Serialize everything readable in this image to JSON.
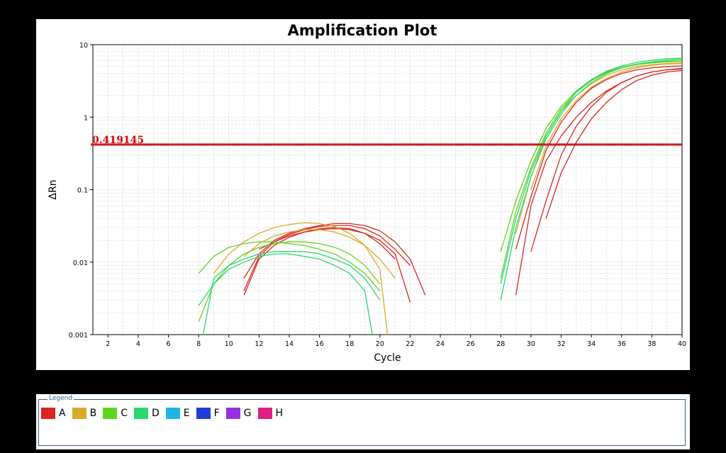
{
  "chart_data": {
    "type": "line",
    "title": "Amplification Plot",
    "xlabel": "Cycle",
    "ylabel": "ΔRn",
    "xlim": [
      1,
      40
    ],
    "ylim": [
      0.001,
      10
    ],
    "y_scale": "log",
    "x_ticks": [
      2,
      4,
      6,
      8,
      10,
      12,
      14,
      16,
      18,
      20,
      22,
      24,
      26,
      28,
      30,
      32,
      34,
      36,
      38,
      40
    ],
    "y_ticks": [
      "10",
      "1",
      "0.1",
      "0.01",
      "0.001"
    ],
    "y_tick_values": [
      10,
      1,
      0.1,
      0.01,
      0.001
    ],
    "grid": true,
    "threshold": {
      "label": "0.419145",
      "value": 0.419145,
      "color": "#c81e1e"
    },
    "series": [
      {
        "group": "A",
        "color": "#d9251d",
        "segments": [
          {
            "x": [
              11,
              12,
              13,
              14,
              15,
              16,
              17,
              18,
              19,
              20,
              21
            ],
            "y": [
              0.0035,
              0.011,
              0.017,
              0.022,
              0.026,
              0.029,
              0.03,
              0.029,
              0.025,
              0.018,
              0.011
            ]
          },
          {
            "x": [
              29,
              30,
              31,
              32,
              33,
              34,
              35,
              36,
              37,
              38,
              39,
              40
            ],
            "y": [
              0.0035,
              0.06,
              0.25,
              0.55,
              1.0,
              1.6,
              2.3,
              3.0,
              3.7,
              4.2,
              4.5,
              4.7
            ]
          }
        ]
      },
      {
        "group": "A",
        "color": "#d9251d",
        "segments": [
          {
            "x": [
              11,
              12,
              13,
              14,
              15,
              16,
              17,
              18,
              19,
              20,
              21,
              22
            ],
            "y": [
              0.004,
              0.012,
              0.019,
              0.024,
              0.028,
              0.031,
              0.032,
              0.032,
              0.029,
              0.023,
              0.015,
              0.009
            ]
          },
          {
            "x": [
              30,
              31,
              32,
              33,
              34,
              35,
              36,
              37,
              38,
              39,
              40
            ],
            "y": [
              0.014,
              0.07,
              0.3,
              0.75,
              1.4,
              2.2,
              3.0,
              3.7,
              4.2,
              4.5,
              4.6
            ]
          }
        ]
      },
      {
        "group": "A",
        "color": "#d9251d",
        "segments": [
          {
            "x": [
              11,
              12,
              13,
              14,
              15,
              16,
              17,
              18,
              19,
              20,
              21,
              22,
              23
            ],
            "y": [
              0.006,
              0.013,
              0.02,
              0.025,
              0.029,
              0.032,
              0.034,
              0.034,
              0.032,
              0.027,
              0.019,
              0.011,
              0.0035
            ]
          },
          {
            "x": [
              31,
              32,
              33,
              34,
              35,
              36,
              37,
              38,
              39,
              40
            ],
            "y": [
              0.04,
              0.17,
              0.45,
              0.95,
              1.6,
              2.4,
              3.2,
              3.8,
              4.2,
              4.4
            ]
          }
        ]
      },
      {
        "group": "A",
        "color": "#d9251d",
        "segments": [
          {
            "x": [
              12,
              13,
              14,
              15,
              16,
              17,
              18,
              19,
              20,
              21,
              22
            ],
            "y": [
              0.015,
              0.019,
              0.023,
              0.026,
              0.028,
              0.029,
              0.028,
              0.025,
              0.02,
              0.013,
              0.0028
            ]
          },
          {
            "x": [
              29,
              30,
              31,
              32,
              33,
              34,
              35,
              36,
              37,
              38,
              39,
              40
            ],
            "y": [
              0.015,
              0.08,
              0.35,
              0.85,
              1.6,
              2.5,
              3.3,
              4.0,
              4.5,
              4.8,
              5.0,
              5.1
            ]
          }
        ]
      },
      {
        "group": "B",
        "color": "#d9a928",
        "segments": [
          {
            "x": [
              9,
              10,
              11,
              12,
              13,
              14,
              15,
              16,
              17,
              18,
              19,
              20,
              20.5
            ],
            "y": [
              0.007,
              0.013,
              0.019,
              0.025,
              0.03,
              0.033,
              0.035,
              0.034,
              0.031,
              0.025,
              0.017,
              0.008,
              0.001
            ]
          },
          {
            "x": [
              29,
              30,
              31,
              32,
              33,
              34,
              35,
              36,
              37,
              38,
              39,
              40
            ],
            "y": [
              0.025,
              0.15,
              0.55,
              1.2,
              2.0,
              2.9,
              3.8,
              4.5,
              5.0,
              5.3,
              5.5,
              5.6
            ]
          }
        ]
      },
      {
        "group": "B",
        "color": "#d9a928",
        "segments": [
          {
            "x": [
              11,
              12,
              13,
              14,
              15,
              16,
              17,
              18,
              19,
              20,
              21
            ],
            "y": [
              0.012,
              0.018,
              0.023,
              0.026,
              0.028,
              0.028,
              0.026,
              0.022,
              0.017,
              0.011,
              0.006
            ]
          },
          {
            "x": [
              30,
              31,
              32,
              33,
              34,
              35,
              36,
              37,
              38,
              39,
              40
            ],
            "y": [
              0.1,
              0.4,
              0.95,
              1.7,
              2.6,
              3.4,
              4.2,
              4.8,
              5.2,
              5.4,
              5.5
            ]
          }
        ]
      },
      {
        "group": "C",
        "color": "#5fd41e",
        "segments": [
          {
            "x": [
              8,
              9,
              10,
              11,
              12,
              13,
              14,
              15,
              16,
              17,
              18,
              19,
              20
            ],
            "y": [
              0.007,
              0.012,
              0.016,
              0.018,
              0.019,
              0.019,
              0.018,
              0.017,
              0.015,
              0.013,
              0.01,
              0.007,
              0.004
            ]
          },
          {
            "x": [
              28,
              29,
              30,
              31,
              32,
              33,
              34,
              35,
              36,
              37,
              38,
              39,
              40
            ],
            "y": [
              0.014,
              0.07,
              0.25,
              0.7,
              1.4,
              2.3,
              3.3,
              4.2,
              4.9,
              5.4,
              5.7,
              5.9,
              6.0
            ]
          }
        ]
      },
      {
        "group": "C",
        "color": "#5fd41e",
        "segments": [
          {
            "x": [
              8,
              9,
              10,
              11,
              12,
              13,
              14,
              15,
              16,
              17,
              18,
              19,
              20
            ],
            "y": [
              0.0015,
              0.005,
              0.009,
              0.013,
              0.016,
              0.018,
              0.019,
              0.019,
              0.018,
              0.016,
              0.013,
              0.009,
              0.005
            ]
          },
          {
            "x": [
              28,
              29,
              30,
              31,
              32,
              33,
              34,
              35,
              36,
              37,
              38,
              39,
              40
            ],
            "y": [
              0.006,
              0.05,
              0.2,
              0.6,
              1.3,
              2.2,
              3.2,
              4.1,
              4.8,
              5.3,
              5.6,
              5.8,
              5.9
            ]
          }
        ]
      },
      {
        "group": "D",
        "color": "#2ad86e",
        "segments": [
          {
            "x": [
              8,
              9,
              10,
              11,
              12,
              13,
              14,
              15,
              16,
              17,
              18,
              19,
              19.5
            ],
            "y": [
              0.0025,
              0.005,
              0.008,
              0.01,
              0.012,
              0.013,
              0.013,
              0.012,
              0.011,
              0.009,
              0.007,
              0.004,
              0.001
            ]
          },
          {
            "x": [
              28,
              29,
              30,
              31,
              32,
              33,
              34,
              35,
              36,
              37,
              38,
              39,
              40
            ],
            "y": [
              0.003,
              0.03,
              0.15,
              0.5,
              1.1,
              2.0,
              3.0,
              4.0,
              4.8,
              5.4,
              5.8,
              6.1,
              6.3
            ]
          }
        ]
      },
      {
        "group": "D",
        "color": "#2ad86e",
        "segments": [
          {
            "x": [
              8.3,
              9,
              10,
              11,
              12,
              13,
              14,
              15,
              16,
              17,
              18,
              19,
              20
            ],
            "y": [
              0.001,
              0.006,
              0.009,
              0.011,
              0.013,
              0.014,
              0.014,
              0.014,
              0.013,
              0.011,
              0.009,
              0.006,
              0.003
            ]
          },
          {
            "x": [
              28,
              29,
              30,
              31,
              32,
              33,
              34,
              35,
              36,
              37,
              38,
              39,
              40
            ],
            "y": [
              0.005,
              0.04,
              0.18,
              0.55,
              1.2,
              2.2,
              3.3,
              4.3,
              5.1,
              5.7,
              6.1,
              6.4,
              6.5
            ]
          }
        ]
      }
    ]
  },
  "legend": {
    "title": "Legend",
    "items": [
      {
        "label": "A",
        "color": "#d9251d"
      },
      {
        "label": "B",
        "color": "#d9a928"
      },
      {
        "label": "C",
        "color": "#5fd41e"
      },
      {
        "label": "D",
        "color": "#2ad86e"
      },
      {
        "label": "E",
        "color": "#1fb6e4"
      },
      {
        "label": "F",
        "color": "#1f3ed8"
      },
      {
        "label": "G",
        "color": "#9630e0"
      },
      {
        "label": "H",
        "color": "#dd1e83"
      }
    ]
  }
}
